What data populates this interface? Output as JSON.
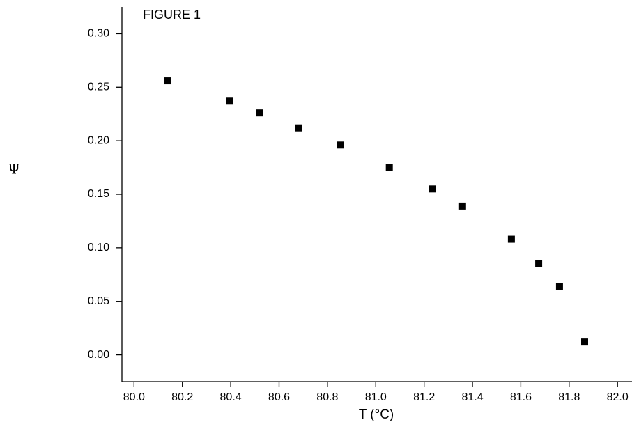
{
  "chart_data": {
    "type": "scatter",
    "title": "FIGURE 1",
    "xlabel": "T (°C)",
    "ylabel": "Ψ",
    "color": "#000000",
    "x": [
      80.139,
      80.395,
      80.52,
      80.681,
      80.854,
      81.056,
      81.235,
      81.359,
      81.561,
      81.674,
      81.76,
      81.864
    ],
    "values": [
      0.256,
      0.237,
      0.226,
      0.212,
      0.196,
      0.175,
      0.155,
      0.139,
      0.108,
      0.085,
      0.064,
      0.012
    ],
    "xlim": [
      79.95,
      82.06
    ],
    "ylim": [
      -0.025,
      0.325
    ],
    "xticks": [
      {
        "value": 80,
        "label": "80.0"
      },
      {
        "value": 80.2,
        "label": "80.2"
      },
      {
        "value": 80.4,
        "label": "80.4"
      },
      {
        "value": 80.6,
        "label": "80.6"
      },
      {
        "value": 80.8,
        "label": "80.8"
      },
      {
        "value": 81,
        "label": "81.0"
      },
      {
        "value": 81.2,
        "label": "81.2"
      },
      {
        "value": 81.4,
        "label": "81.4"
      },
      {
        "value": 81.6,
        "label": "81.6"
      },
      {
        "value": 81.8,
        "label": "81.8"
      },
      {
        "value": 82,
        "label": "82.0"
      }
    ],
    "yticks": [
      {
        "value": 0,
        "label": "0.00"
      },
      0.05,
      {
        "value": 0.1,
        "label": "0.10"
      },
      0.15,
      {
        "value": 0.2,
        "label": "0.20"
      },
      0.25,
      {
        "value": 0.3,
        "label": "0.30"
      }
    ]
  }
}
